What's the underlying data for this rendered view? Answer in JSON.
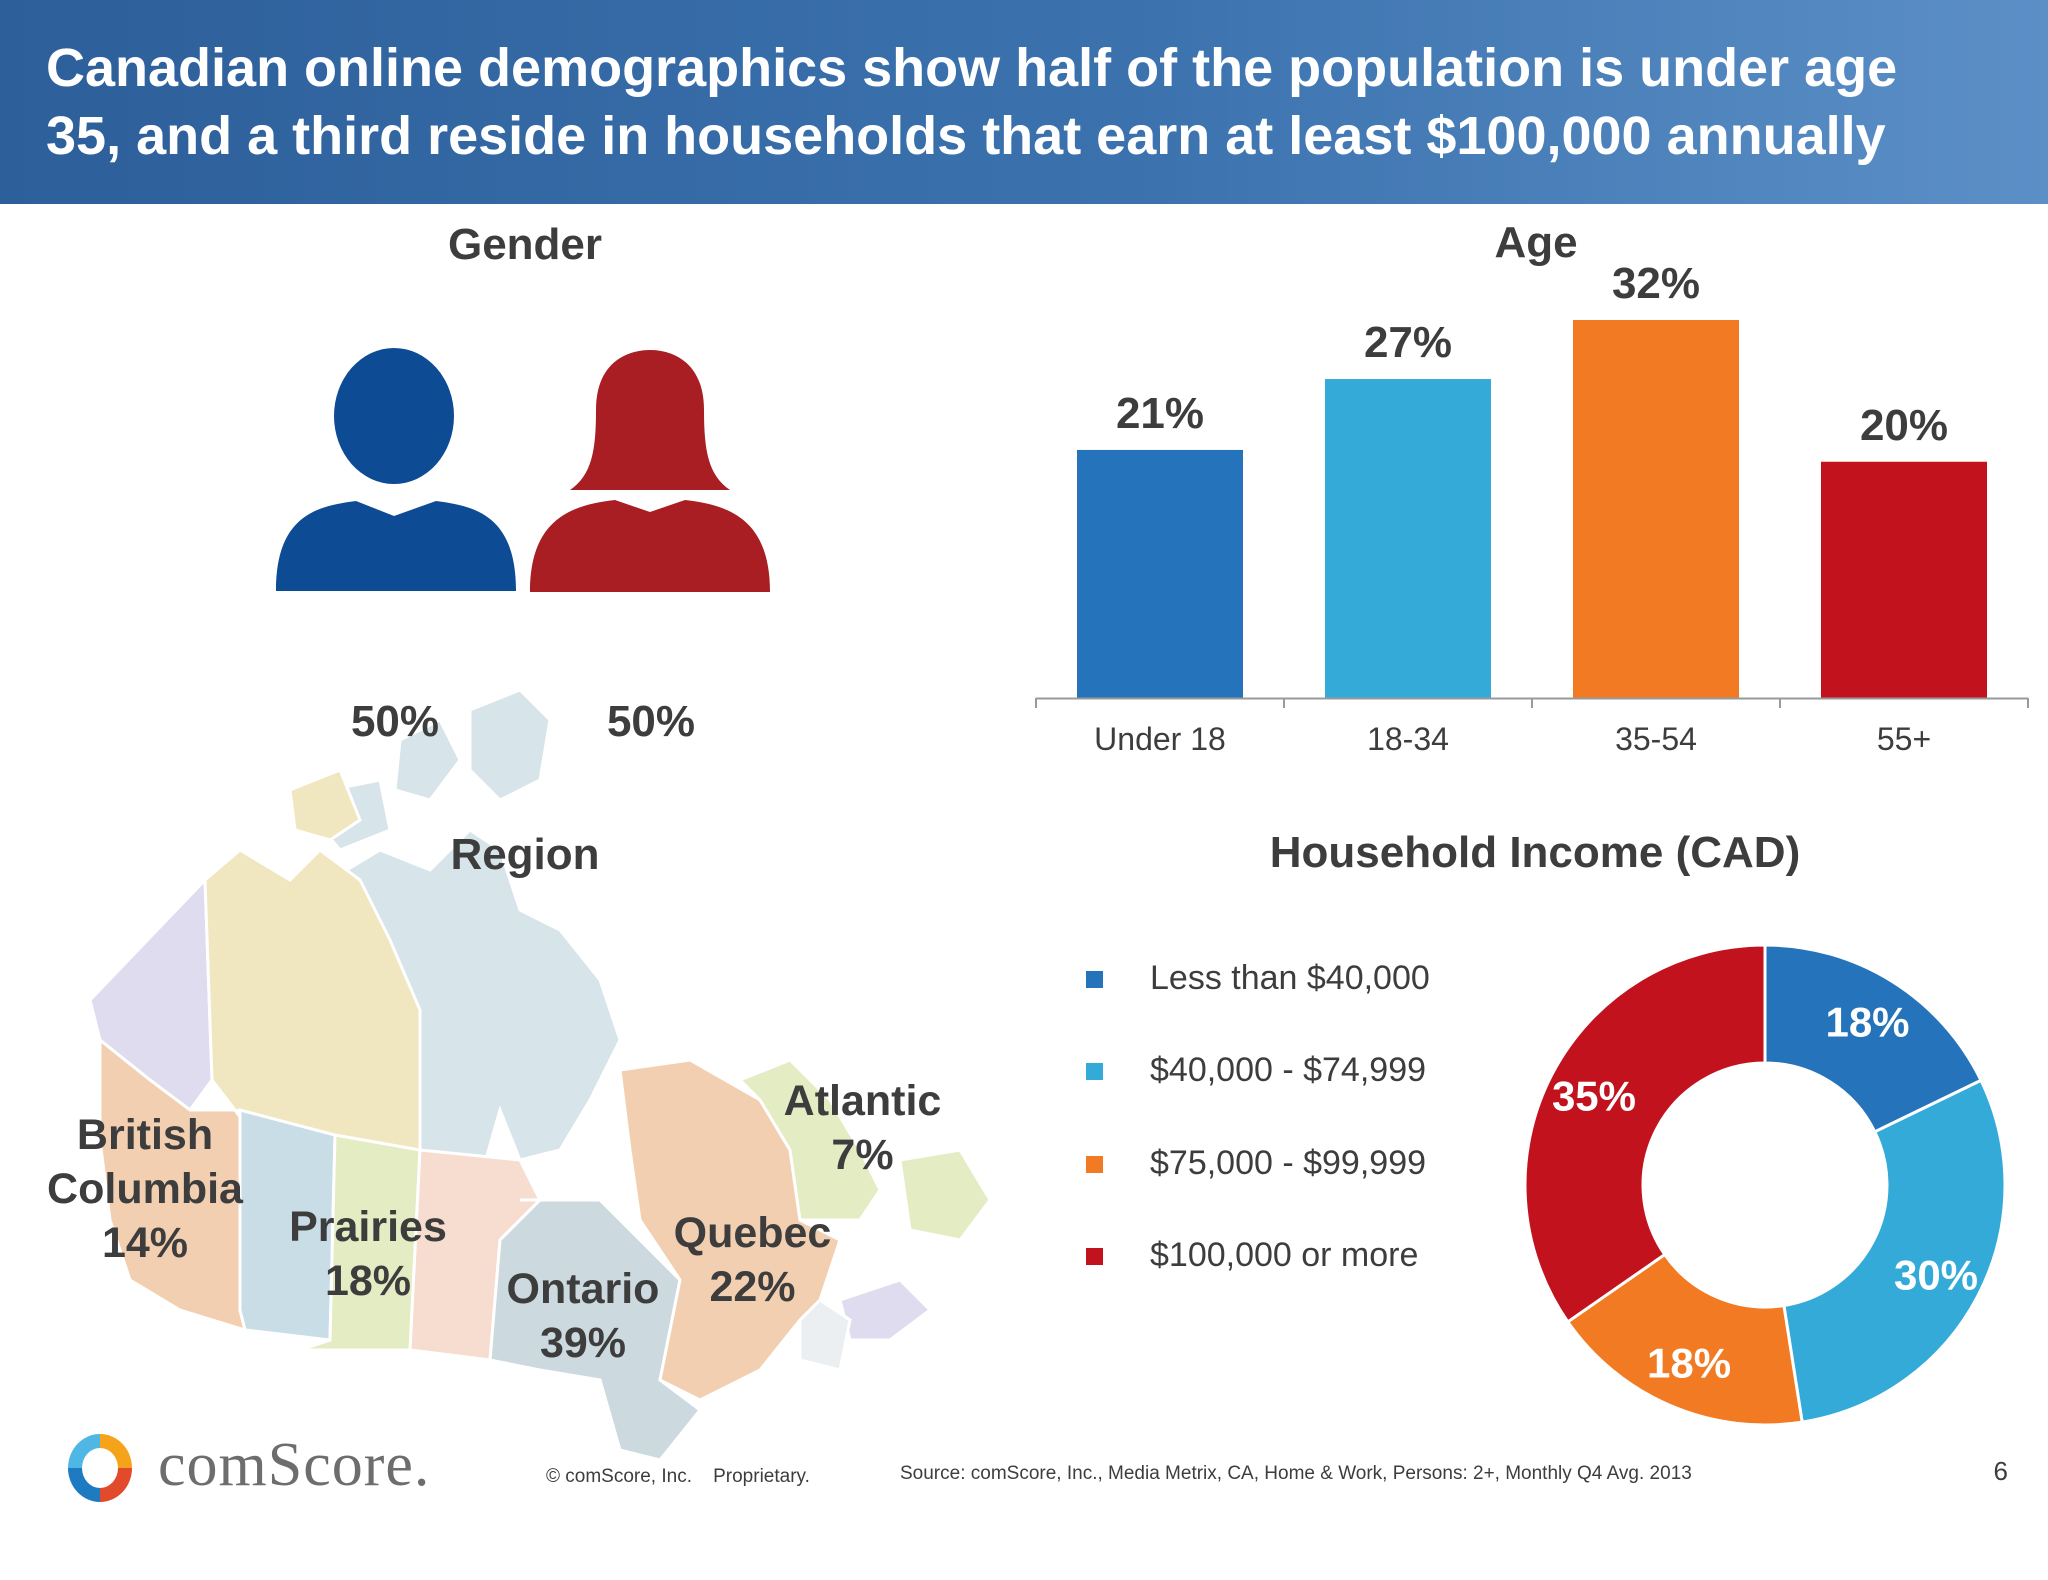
{
  "header": {
    "title_line1": "Canadian online demographics show half of the population is under age",
    "title_line2": "35, and a third reside in households that earn at least $100,000 annually"
  },
  "gender": {
    "title": "Gender",
    "male_label": "50%",
    "female_label": "50%",
    "male_color": "#0d4c94",
    "female_color": "#a81e23"
  },
  "region": {
    "title": "Region",
    "items": [
      {
        "name": "British",
        "name2": "Columbia",
        "value": "14%",
        "color": "#f2cfb0"
      },
      {
        "name": "Prairies",
        "name2": "",
        "value": "18%",
        "color": "#c9dde6"
      },
      {
        "name": "Ontario",
        "name2": "",
        "value": "39%",
        "color": "#ccd9df"
      },
      {
        "name": "Quebec",
        "name2": "",
        "value": "22%",
        "color": "#f2cfb0"
      },
      {
        "name": "Atlantic",
        "name2": "",
        "value": "7%",
        "color": "#e4ecc3"
      }
    ]
  },
  "chart_data": [
    {
      "type": "bar",
      "title": "Age",
      "categories": [
        "Under 18",
        "18-34",
        "35-54",
        "55+"
      ],
      "values": [
        21,
        27,
        32,
        20
      ],
      "data_labels": [
        "21%",
        "27%",
        "32%",
        "20%"
      ],
      "colors": [
        "#2573bb",
        "#34aad9",
        "#f27a22",
        "#c1121e"
      ],
      "ylim": [
        0,
        32
      ]
    },
    {
      "type": "pie",
      "title": "Household Income (CAD)",
      "categories": [
        "Less than $40,000",
        "$40,000 - $74,999",
        "$75,000 - $99,999",
        "$100,000 or more"
      ],
      "values": [
        18,
        30,
        18,
        35
      ],
      "data_labels": [
        "18%",
        "30%",
        "18%",
        "35%"
      ],
      "colors": [
        "#2573bb",
        "#34aad9",
        "#f27a22",
        "#c1121e"
      ],
      "legend": "left"
    }
  ],
  "footer": {
    "brand": "comScore.",
    "copyright": "© comScore, Inc.    Proprietary.",
    "source": "Source: comScore, Inc., Media Metrix, CA, Home & Work, Persons: 2+, Monthly Q4 Avg. 2013",
    "page": "6"
  }
}
